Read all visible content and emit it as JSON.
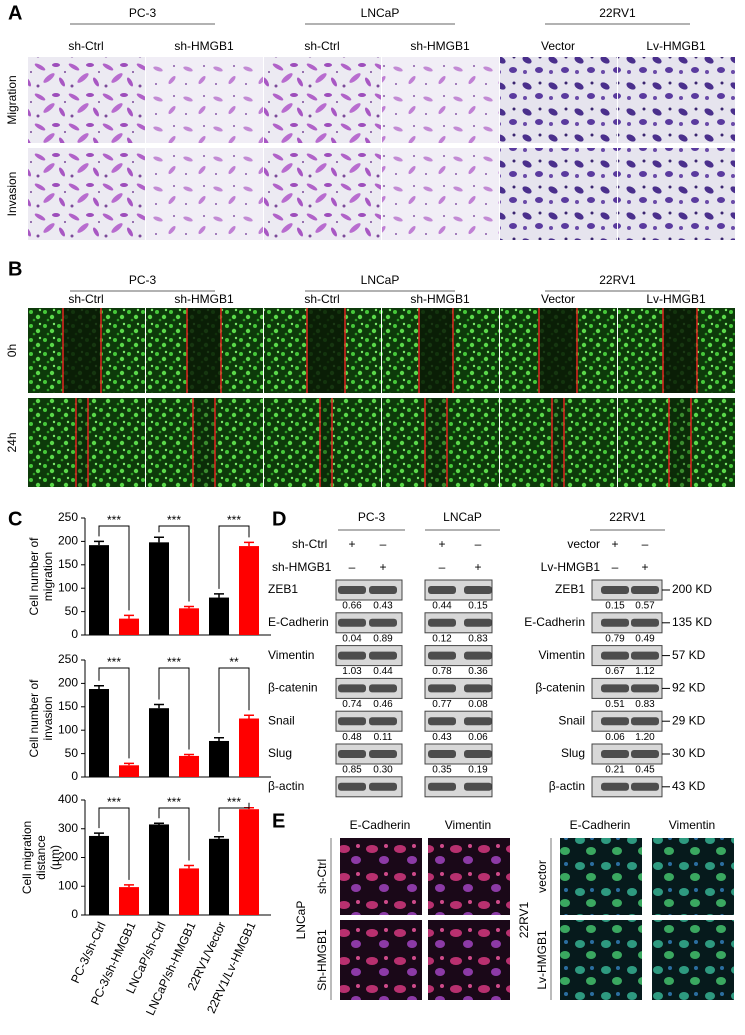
{
  "panels": {
    "A": {
      "label": "A",
      "groups": [
        "PC-3",
        "LNCaP",
        "22RV1"
      ],
      "columns": [
        "sh-Ctrl",
        "sh-HMGB1",
        "sh-Ctrl",
        "sh-HMGB1",
        "Vector",
        "Lv-HMGB1"
      ],
      "rows": [
        "Migration",
        "Invasion"
      ]
    },
    "B": {
      "label": "B",
      "groups": [
        "PC-3",
        "LNCaP",
        "22RV1"
      ],
      "columns": [
        "sh-Ctrl",
        "sh-HMGB1",
        "sh-Ctrl",
        "sh-HMGB1",
        "Vector",
        "Lv-HMGB1"
      ],
      "rows": [
        "0h",
        "24h"
      ]
    },
    "C": {
      "label": "C"
    },
    "D": {
      "label": "D",
      "groups": [
        "PC-3",
        "LNCaP",
        "22RV1"
      ],
      "treatments_left": [
        {
          "name": "sh-Ctrl",
          "signs": [
            "+",
            "–",
            "+",
            "–"
          ]
        },
        {
          "name": "sh-HMGB1",
          "signs": [
            "–",
            "+",
            "–",
            "+"
          ]
        }
      ],
      "treatments_right": [
        {
          "name": "vector",
          "signs": [
            "+",
            "–"
          ]
        },
        {
          "name": "Lv-HMGB1",
          "signs": [
            "–",
            "+"
          ]
        }
      ],
      "blots": [
        {
          "protein": "ZEB1",
          "pc3": [
            "0.66",
            "0.43"
          ],
          "lncap": [
            "0.44",
            "0.15"
          ],
          "rv1": [
            "0.15",
            "0.57"
          ],
          "size": "200 KD"
        },
        {
          "protein": "E-Cadherin",
          "pc3": [
            "0.04",
            "0.89"
          ],
          "lncap": [
            "0.12",
            "0.83"
          ],
          "rv1": [
            "0.79",
            "0.49"
          ],
          "size": "135 KD"
        },
        {
          "protein": "Vimentin",
          "pc3": [
            "1.03",
            "0.44"
          ],
          "lncap": [
            "0.78",
            "0.36"
          ],
          "rv1": [
            "0.67",
            "1.12"
          ],
          "size": "57 KD"
        },
        {
          "protein": "β-catenin",
          "pc3": [
            "0.74",
            "0.46"
          ],
          "lncap": [
            "0.77",
            "0.08"
          ],
          "rv1": [
            "0.51",
            "0.83"
          ],
          "size": "92 KD"
        },
        {
          "protein": "Snail",
          "pc3": [
            "0.48",
            "0.11"
          ],
          "lncap": [
            "0.43",
            "0.06"
          ],
          "rv1": [
            "0.06",
            "1.20"
          ],
          "size": "29 KD"
        },
        {
          "protein": "Slug",
          "pc3": [
            "0.85",
            "0.30"
          ],
          "lncap": [
            "0.35",
            "0.19"
          ],
          "rv1": [
            "0.21",
            "0.45"
          ],
          "size": "30 KD"
        },
        {
          "protein": "β-actin",
          "size": "43 KD"
        }
      ]
    },
    "E": {
      "label": "E",
      "left": {
        "cell": "LNCaP",
        "columns": [
          "E-Cadherin",
          "Vimentin"
        ],
        "rows": [
          "sh-Ctrl",
          "Sh-HMGB1"
        ]
      },
      "right": {
        "cell": "22RV1",
        "columns": [
          "E-Cadherin",
          "Vimentin"
        ],
        "rows": [
          "vector",
          "Lv-HMGB1"
        ]
      }
    }
  },
  "chart_data": [
    {
      "type": "bar",
      "ylabel": [
        "Cell number of",
        "migration"
      ],
      "categories": [
        null,
        null,
        null,
        null,
        null,
        null
      ],
      "values": [
        192,
        35,
        198,
        57,
        80,
        190
      ],
      "errors": [
        8,
        7,
        11,
        4,
        8,
        8
      ],
      "colors": [
        "#000000",
        "#ff0000",
        "#000000",
        "#ff0000",
        "#000000",
        "#ff0000"
      ],
      "ylim": [
        0,
        250
      ],
      "yticks": [
        0,
        50,
        100,
        150,
        200,
        250
      ],
      "annotations": [
        "***",
        "***",
        "***"
      ]
    },
    {
      "type": "bar",
      "ylabel": [
        "Cell number of",
        "invasion"
      ],
      "categories": [
        null,
        null,
        null,
        null,
        null,
        null
      ],
      "values": [
        188,
        25,
        147,
        45,
        77,
        125
      ],
      "errors": [
        7,
        4,
        8,
        3,
        7,
        7
      ],
      "colors": [
        "#000000",
        "#ff0000",
        "#000000",
        "#ff0000",
        "#000000",
        "#ff0000"
      ],
      "ylim": [
        0,
        250
      ],
      "yticks": [
        0,
        50,
        100,
        150,
        200,
        250
      ],
      "annotations": [
        "***",
        "***",
        "**"
      ]
    },
    {
      "type": "bar",
      "ylabel": [
        "Cell migration",
        "distance",
        "(μm)"
      ],
      "categories": [
        "PC-3/sh-Ctrl",
        "PC-3/sh-HMGB1",
        "LNCaP/sh-Ctrl",
        "LNCaP/sh-HMGB1",
        "22RV1/Vector",
        "22RV1/Lv-HMGB1"
      ],
      "values": [
        275,
        97,
        315,
        162,
        265,
        368
      ],
      "errors": [
        10,
        8,
        4,
        10,
        7,
        5
      ],
      "colors": [
        "#000000",
        "#ff0000",
        "#000000",
        "#ff0000",
        "#000000",
        "#ff0000"
      ],
      "ylim": [
        0,
        400
      ],
      "yticks": [
        0,
        100,
        200,
        300,
        400
      ],
      "annotations": [
        "***",
        "***",
        "***"
      ]
    }
  ]
}
